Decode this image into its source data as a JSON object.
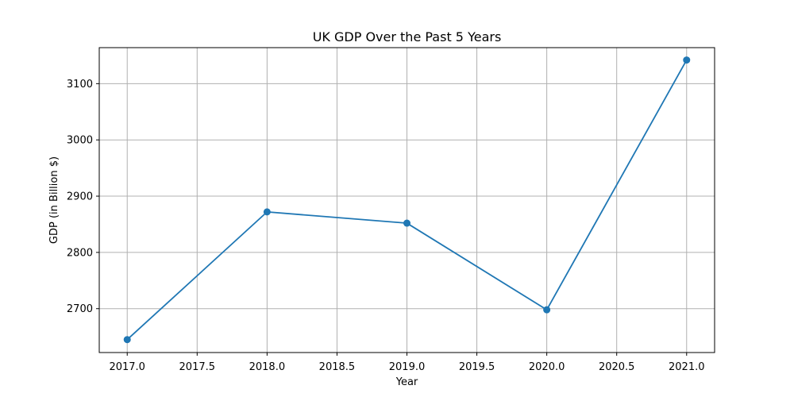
{
  "chart_data": {
    "type": "line",
    "title": "UK GDP Over the Past 5 Years",
    "xlabel": "Year",
    "ylabel": "GDP (in Billion $)",
    "x": [
      2017,
      2018,
      2019,
      2020,
      2021
    ],
    "series": [
      {
        "values": [
          2645,
          2872,
          2852,
          2698,
          3142
        ],
        "color": "#1f77b4",
        "marker": "circle"
      }
    ],
    "xlim": [
      2016.8,
      2021.2
    ],
    "ylim": [
      2622,
      3164
    ],
    "xticks": [
      "2017.0",
      "2017.5",
      "2018.0",
      "2018.5",
      "2019.0",
      "2019.5",
      "2020.0",
      "2020.5",
      "2021.0"
    ],
    "yticks": [
      "2700",
      "2800",
      "2900",
      "3000",
      "3100"
    ],
    "grid": true,
    "legend": false
  }
}
